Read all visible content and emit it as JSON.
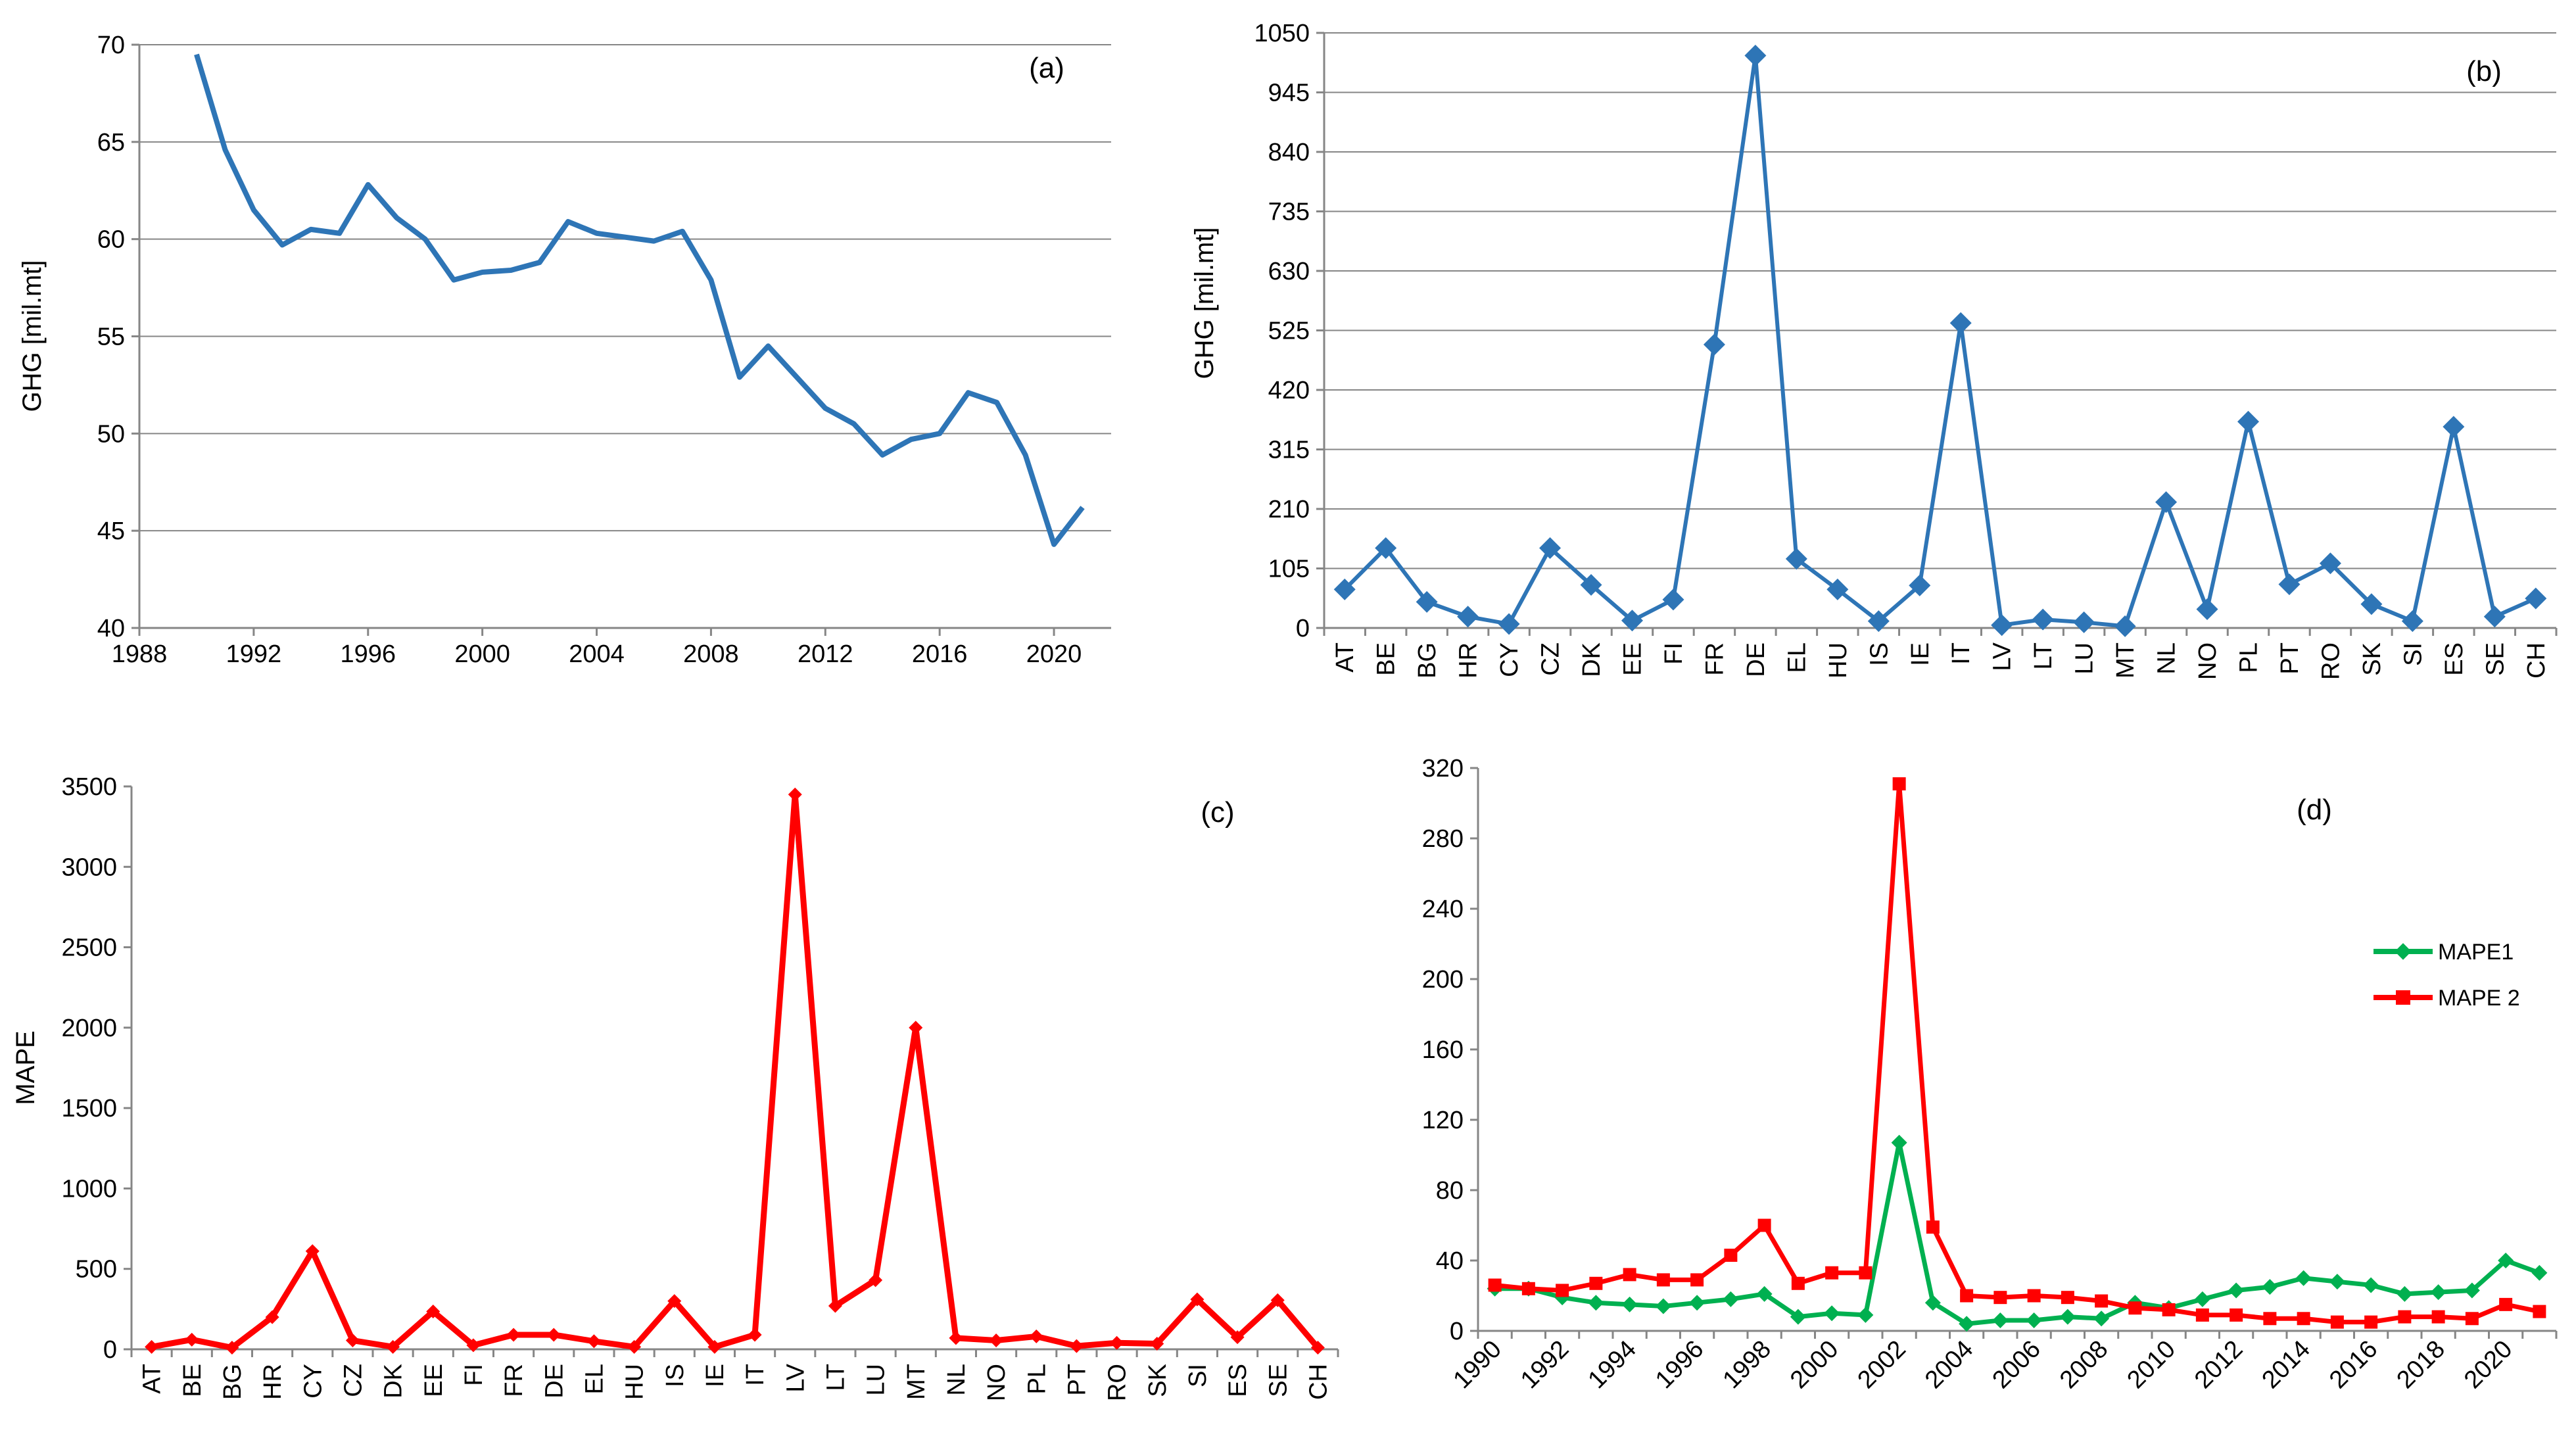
{
  "chart_data": [
    {
      "id": "a",
      "type": "line",
      "panel_label": "(a)",
      "title": "",
      "xlabel": "",
      "ylabel": "GHG [mil.mt]",
      "xlim": [
        1988,
        2022
      ],
      "ylim": [
        40,
        70
      ],
      "yticks": [
        "40",
        "45",
        "50",
        "55",
        "60",
        "65",
        "70"
      ],
      "xticks": [
        "1988",
        "1992",
        "1996",
        "2000",
        "2004",
        "2008",
        "2012",
        "2016",
        "2020"
      ],
      "grid": "horizontal",
      "color": "#2E75B6",
      "series": [
        {
          "name": "GHG",
          "x": [
            1990,
            1991,
            1992,
            1993,
            1994,
            1995,
            1996,
            1997,
            1998,
            1999,
            2000,
            2001,
            2002,
            2003,
            2004,
            2005,
            2006,
            2007,
            2008,
            2009,
            2010,
            2011,
            2012,
            2013,
            2014,
            2015,
            2016,
            2017,
            2018,
            2019,
            2020,
            2021
          ],
          "values": [
            69.5,
            64.6,
            61.5,
            59.7,
            60.5,
            60.3,
            62.8,
            61.1,
            60.0,
            57.9,
            58.3,
            58.4,
            58.8,
            60.9,
            60.3,
            60.1,
            59.9,
            60.4,
            57.9,
            52.9,
            54.5,
            52.9,
            51.3,
            50.5,
            48.9,
            49.7,
            50.0,
            52.1,
            51.6,
            48.9,
            44.3,
            46.2
          ]
        }
      ]
    },
    {
      "id": "b",
      "type": "line",
      "panel_label": "(b)",
      "title": "",
      "xlabel": "",
      "ylabel": "GHG [mil.mt]",
      "ylim": [
        0,
        1050
      ],
      "yticks": [
        "0",
        "105",
        "210",
        "315",
        "420",
        "525",
        "630",
        "735",
        "840",
        "945",
        "1050"
      ],
      "grid": "horizontal",
      "color": "#2E75B6",
      "marker": "diamond",
      "categories": [
        "AT",
        "BE",
        "BG",
        "HR",
        "CY",
        "CZ",
        "DK",
        "EE",
        "FI",
        "FR",
        "DE",
        "EL",
        "HU",
        "IS",
        "IE",
        "IT",
        "LV",
        "LT",
        "LU",
        "MT",
        "NL",
        "NO",
        "PL",
        "PT",
        "RO",
        "SK",
        "SI",
        "ES",
        "SE",
        "CH"
      ],
      "series": [
        {
          "name": "GHG",
          "values": [
            68,
            141,
            46,
            20,
            7,
            141,
            76,
            13,
            50,
            500,
            1010,
            122,
            68,
            12,
            75,
            538,
            5,
            15,
            10,
            3,
            222,
            33,
            364,
            77,
            114,
            42,
            12,
            355,
            20,
            52
          ]
        }
      ]
    },
    {
      "id": "c",
      "type": "line",
      "panel_label": "(c)",
      "title": "",
      "xlabel": "",
      "ylabel": "MAPE",
      "ylim": [
        0,
        3500
      ],
      "yticks": [
        "0",
        "500",
        "1000",
        "1500",
        "2000",
        "2500",
        "3000",
        "3500"
      ],
      "grid": "none",
      "color": "#FF0000",
      "marker": "diamond",
      "categories": [
        "AT",
        "BE",
        "BG",
        "HR",
        "CY",
        "CZ",
        "DK",
        "EE",
        "FI",
        "FR",
        "DE",
        "EL",
        "HU",
        "IS",
        "IE",
        "IT",
        "LV",
        "LT",
        "LU",
        "MT",
        "NL",
        "NO",
        "PL",
        "PT",
        "RO",
        "SK",
        "SI",
        "ES",
        "SE",
        "CH"
      ],
      "series": [
        {
          "name": "MAPE",
          "values": [
            15,
            60,
            10,
            200,
            610,
            55,
            15,
            235,
            25,
            90,
            90,
            50,
            15,
            300,
            15,
            90,
            3450,
            270,
            430,
            2000,
            70,
            55,
            80,
            20,
            40,
            35,
            310,
            75,
            305,
            10
          ]
        }
      ]
    },
    {
      "id": "d",
      "type": "line",
      "panel_label": "(d)",
      "title": "",
      "xlabel": "",
      "ylabel": "",
      "xlim": [
        1990,
        2021
      ],
      "ylim": [
        0,
        320
      ],
      "yticks": [
        "0",
        "40",
        "80",
        "120",
        "160",
        "200",
        "240",
        "280",
        "320"
      ],
      "xticks": [
        "1990",
        "1992",
        "1994",
        "1996",
        "1998",
        "2000",
        "2002",
        "2004",
        "2006",
        "2008",
        "2010",
        "2012",
        "2014",
        "2016",
        "2018",
        "2020"
      ],
      "grid": "none",
      "legend_position": "right",
      "x": [
        1990,
        1991,
        1992,
        1993,
        1994,
        1995,
        1996,
        1997,
        1998,
        1999,
        2000,
        2001,
        2002,
        2003,
        2004,
        2005,
        2006,
        2007,
        2008,
        2009,
        2010,
        2011,
        2012,
        2013,
        2014,
        2015,
        2016,
        2017,
        2018,
        2019,
        2020,
        2021
      ],
      "series": [
        {
          "name": "MAPE1",
          "color": "#00B050",
          "marker": "diamond",
          "values": [
            24,
            24,
            19,
            16,
            15,
            14,
            16,
            18,
            21,
            8,
            10,
            9,
            107,
            16,
            4,
            6,
            6,
            8,
            7,
            16,
            13,
            18,
            23,
            25,
            30,
            28,
            26,
            21,
            22,
            23,
            40,
            33
          ]
        },
        {
          "name": "MAPE 2",
          "color": "#FF0000",
          "marker": "square",
          "values": [
            26,
            24,
            23,
            27,
            32,
            29,
            29,
            43,
            60,
            27,
            33,
            33,
            311,
            59,
            20,
            19,
            20,
            19,
            17,
            13,
            12,
            9,
            9,
            7,
            7,
            5,
            5,
            8,
            8,
            7,
            15,
            11
          ]
        }
      ]
    }
  ]
}
